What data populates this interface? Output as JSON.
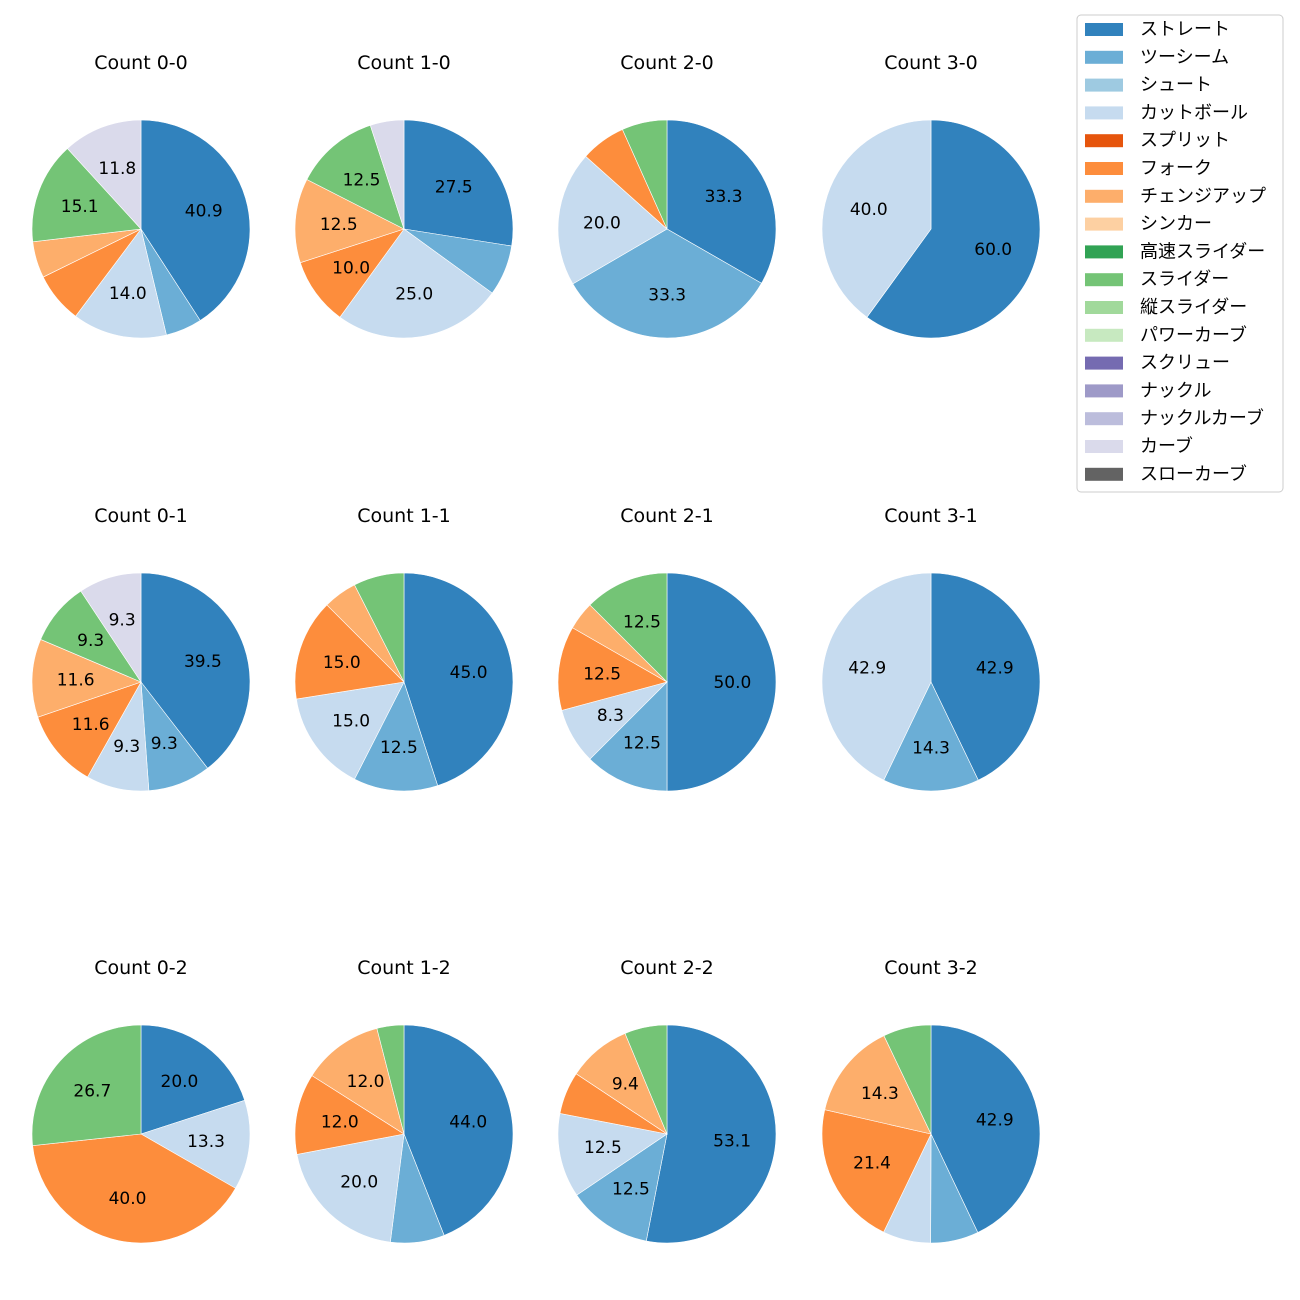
{
  "legend": [
    {
      "label": "ストレート",
      "color": "#3182bd"
    },
    {
      "label": "ツーシーム",
      "color": "#6baed6"
    },
    {
      "label": "シュート",
      "color": "#9ecae1"
    },
    {
      "label": "カットボール",
      "color": "#c6dbef"
    },
    {
      "label": "スプリット",
      "color": "#e6550d"
    },
    {
      "label": "フォーク",
      "color": "#fd8d3c"
    },
    {
      "label": "チェンジアップ",
      "color": "#fdae6b"
    },
    {
      "label": "シンカー",
      "color": "#fdd0a2"
    },
    {
      "label": "高速スライダー",
      "color": "#31a354"
    },
    {
      "label": "スライダー",
      "color": "#74c476"
    },
    {
      "label": "縦スライダー",
      "color": "#a1d99b"
    },
    {
      "label": "パワーカーブ",
      "color": "#c7e9c0"
    },
    {
      "label": "スクリュー",
      "color": "#756bb1"
    },
    {
      "label": "ナックル",
      "color": "#9e9ac8"
    },
    {
      "label": "ナックルカーブ",
      "color": "#bcbddc"
    },
    {
      "label": "カーブ",
      "color": "#dadaeb"
    },
    {
      "label": "スローカーブ",
      "color": "#636363"
    }
  ],
  "chart_data": [
    {
      "type": "pie",
      "title": "Count 0-0",
      "slices": [
        {
          "name": "ストレート",
          "value": 40.9,
          "label": "40.9"
        },
        {
          "name": "ツーシーム",
          "value": 5.4,
          "label": ""
        },
        {
          "name": "カットボール",
          "value": 14.0,
          "label": "14.0"
        },
        {
          "name": "フォーク",
          "value": 7.5,
          "label": ""
        },
        {
          "name": "チェンジアップ",
          "value": 5.4,
          "label": ""
        },
        {
          "name": "スライダー",
          "value": 15.1,
          "label": "15.1"
        },
        {
          "name": "カーブ",
          "value": 11.8,
          "label": "11.8"
        }
      ]
    },
    {
      "type": "pie",
      "title": "Count 1-0",
      "slices": [
        {
          "name": "ストレート",
          "value": 27.5,
          "label": "27.5"
        },
        {
          "name": "ツーシーム",
          "value": 7.5,
          "label": ""
        },
        {
          "name": "カットボール",
          "value": 25.0,
          "label": "25.0"
        },
        {
          "name": "フォーク",
          "value": 10.0,
          "label": "10.0"
        },
        {
          "name": "チェンジアップ",
          "value": 12.5,
          "label": "12.5"
        },
        {
          "name": "スライダー",
          "value": 12.5,
          "label": "12.5"
        },
        {
          "name": "カーブ",
          "value": 5.0,
          "label": ""
        }
      ]
    },
    {
      "type": "pie",
      "title": "Count 2-0",
      "slices": [
        {
          "name": "ストレート",
          "value": 33.3,
          "label": "33.3"
        },
        {
          "name": "ツーシーム",
          "value": 33.3,
          "label": "33.3"
        },
        {
          "name": "カットボール",
          "value": 20.0,
          "label": "20.0"
        },
        {
          "name": "フォーク",
          "value": 6.7,
          "label": ""
        },
        {
          "name": "スライダー",
          "value": 6.7,
          "label": ""
        }
      ]
    },
    {
      "type": "pie",
      "title": "Count 3-0",
      "slices": [
        {
          "name": "ストレート",
          "value": 60.0,
          "label": "60.0"
        },
        {
          "name": "カットボール",
          "value": 40.0,
          "label": "40.0"
        }
      ]
    },
    {
      "type": "pie",
      "title": "Count 0-1",
      "slices": [
        {
          "name": "ストレート",
          "value": 39.5,
          "label": "39.5"
        },
        {
          "name": "ツーシーム",
          "value": 9.3,
          "label": "9.3"
        },
        {
          "name": "カットボール",
          "value": 9.3,
          "label": "9.3"
        },
        {
          "name": "フォーク",
          "value": 11.6,
          "label": "11.6"
        },
        {
          "name": "チェンジアップ",
          "value": 11.6,
          "label": "11.6"
        },
        {
          "name": "スライダー",
          "value": 9.3,
          "label": "9.3"
        },
        {
          "name": "カーブ",
          "value": 9.3,
          "label": "9.3"
        }
      ]
    },
    {
      "type": "pie",
      "title": "Count 1-1",
      "slices": [
        {
          "name": "ストレート",
          "value": 45.0,
          "label": "45.0"
        },
        {
          "name": "ツーシーム",
          "value": 12.5,
          "label": "12.5"
        },
        {
          "name": "カットボール",
          "value": 15.0,
          "label": "15.0"
        },
        {
          "name": "フォーク",
          "value": 15.0,
          "label": "15.0"
        },
        {
          "name": "チェンジアップ",
          "value": 5.0,
          "label": ""
        },
        {
          "name": "スライダー",
          "value": 7.5,
          "label": ""
        }
      ]
    },
    {
      "type": "pie",
      "title": "Count 2-1",
      "slices": [
        {
          "name": "ストレート",
          "value": 50.0,
          "label": "50.0"
        },
        {
          "name": "ツーシーム",
          "value": 12.5,
          "label": "12.5"
        },
        {
          "name": "カットボール",
          "value": 8.3,
          "label": "8.3"
        },
        {
          "name": "フォーク",
          "value": 12.5,
          "label": "12.5"
        },
        {
          "name": "チェンジアップ",
          "value": 4.2,
          "label": ""
        },
        {
          "name": "スライダー",
          "value": 12.5,
          "label": "12.5"
        }
      ]
    },
    {
      "type": "pie",
      "title": "Count 3-1",
      "slices": [
        {
          "name": "ストレート",
          "value": 42.9,
          "label": "42.9"
        },
        {
          "name": "ツーシーム",
          "value": 14.3,
          "label": "14.3"
        },
        {
          "name": "カットボール",
          "value": 42.9,
          "label": "42.9"
        }
      ]
    },
    {
      "type": "pie",
      "title": "Count 0-2",
      "slices": [
        {
          "name": "ストレート",
          "value": 20.0,
          "label": "20.0"
        },
        {
          "name": "カットボール",
          "value": 13.3,
          "label": "13.3"
        },
        {
          "name": "フォーク",
          "value": 40.0,
          "label": "40.0"
        },
        {
          "name": "スライダー",
          "value": 26.7,
          "label": "26.7"
        }
      ]
    },
    {
      "type": "pie",
      "title": "Count 1-2",
      "slices": [
        {
          "name": "ストレート",
          "value": 44.0,
          "label": "44.0"
        },
        {
          "name": "ツーシーム",
          "value": 8.0,
          "label": ""
        },
        {
          "name": "カットボール",
          "value": 20.0,
          "label": "20.0"
        },
        {
          "name": "フォーク",
          "value": 12.0,
          "label": "12.0"
        },
        {
          "name": "チェンジアップ",
          "value": 12.0,
          "label": "12.0"
        },
        {
          "name": "スライダー",
          "value": 4.0,
          "label": ""
        }
      ]
    },
    {
      "type": "pie",
      "title": "Count 2-2",
      "slices": [
        {
          "name": "ストレート",
          "value": 53.1,
          "label": "53.1"
        },
        {
          "name": "ツーシーム",
          "value": 12.5,
          "label": "12.5"
        },
        {
          "name": "カットボール",
          "value": 12.5,
          "label": "12.5"
        },
        {
          "name": "フォーク",
          "value": 6.3,
          "label": ""
        },
        {
          "name": "チェンジアップ",
          "value": 9.4,
          "label": "9.4"
        },
        {
          "name": "スライダー",
          "value": 6.3,
          "label": ""
        }
      ]
    },
    {
      "type": "pie",
      "title": "Count 3-2",
      "slices": [
        {
          "name": "ストレート",
          "value": 42.9,
          "label": "42.9"
        },
        {
          "name": "ツーシーム",
          "value": 7.1,
          "label": ""
        },
        {
          "name": "カットボール",
          "value": 7.1,
          "label": ""
        },
        {
          "name": "フォーク",
          "value": 21.4,
          "label": "21.4"
        },
        {
          "name": "チェンジアップ",
          "value": 14.3,
          "label": "14.3"
        },
        {
          "name": "スライダー",
          "value": 7.1,
          "label": ""
        }
      ]
    }
  ]
}
